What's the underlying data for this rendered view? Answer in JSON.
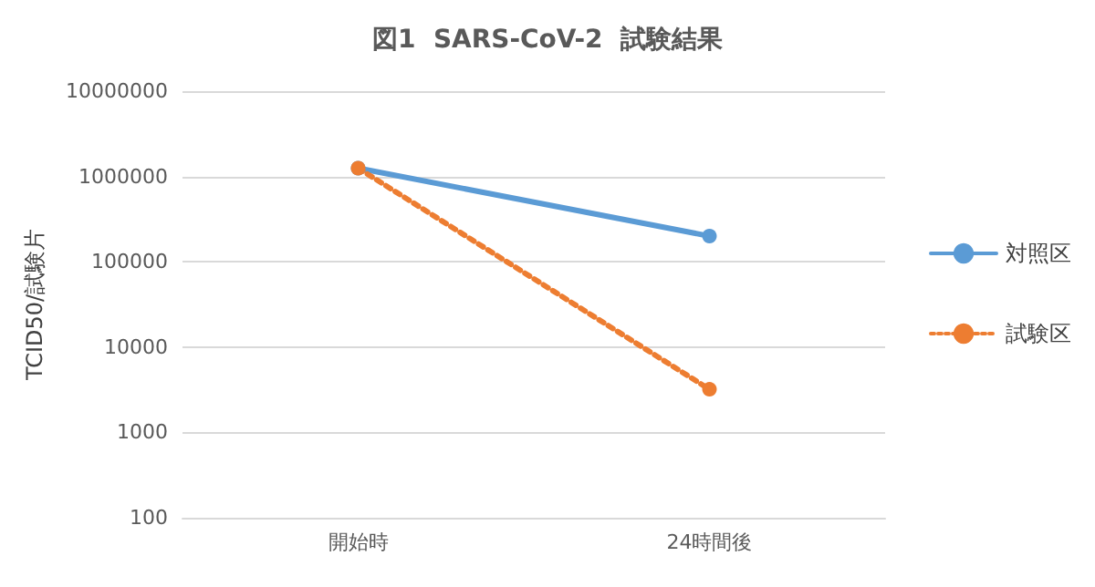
{
  "chart_data": {
    "type": "line",
    "title": "図1  SARS-CoV-2  試験結果",
    "ylabel": "TCID50/試験片",
    "categories": [
      "開始時",
      "24時間後"
    ],
    "series": [
      {
        "name": "対照区",
        "color": "#5b9bd5",
        "values": [
          1250000,
          200000
        ],
        "line_style": "solid"
      },
      {
        "name": "試験区",
        "color": "#ed7d31",
        "values": [
          1250000,
          3200
        ],
        "line_style": "dotted"
      }
    ],
    "log": "y",
    "ylim": [
      100,
      10000000
    ],
    "yticks": [
      100,
      1000,
      10000,
      100000,
      1000000,
      10000000
    ],
    "grid": "y",
    "legend": "right",
    "marker": "circle"
  }
}
